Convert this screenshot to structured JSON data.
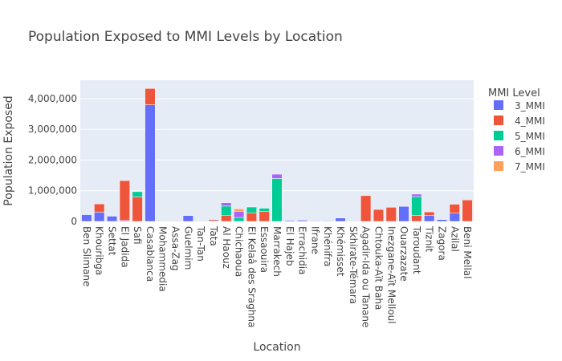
{
  "chart_data": {
    "type": "bar",
    "stacked": true,
    "title": "Population Exposed to MMI Levels by Location",
    "xlabel": "Location",
    "ylabel": "Population Exposed",
    "ylim": [
      0,
      4600000
    ],
    "yticks": [
      0,
      1000000,
      2000000,
      3000000,
      4000000
    ],
    "ytick_labels": [
      "0",
      "1,000,000",
      "2,000,000",
      "3,000,000",
      "4,000,000"
    ],
    "grid": true,
    "legend_title": "MMI Level",
    "legend_position": "right",
    "categories": [
      "Ben Slimane",
      "Khouribga",
      "Settat",
      "El Jadida",
      "Safi",
      "Casablanca",
      "Mohammedia",
      "Assa-Zag",
      "Guelmim",
      "Tan-Tan",
      "Tata",
      "Al Haouz",
      "Chichaoua",
      "El Kelaâ des Sraghna",
      "Essaouira",
      "Marrakech",
      "El Hajeb",
      "Errachidia",
      "Ifrane",
      "Khénifra",
      "Khémisset",
      "Skhirate-Témara",
      "Agadir-Ida ou Tanane",
      "Chtouka-Aït Baha",
      "Inezgane-Aït Melloul",
      "Ouarzazate",
      "Taroudant",
      "Tiznit",
      "Zagora",
      "Azilal",
      "Beni Mellal"
    ],
    "series": [
      {
        "name": "3_MMI",
        "color": "#636efa",
        "values": [
          220000,
          300000,
          170000,
          30000,
          0,
          3800000,
          0,
          0,
          190000,
          0,
          20000,
          0,
          0,
          0,
          0,
          0,
          30000,
          40000,
          20000,
          20000,
          110000,
          0,
          0,
          0,
          0,
          490000,
          0,
          200000,
          60000,
          270000,
          0
        ]
      },
      {
        "name": "4_MMI",
        "color": "#ef553b",
        "values": [
          0,
          270000,
          0,
          1300000,
          800000,
          530000,
          0,
          0,
          0,
          0,
          40000,
          190000,
          0,
          280000,
          330000,
          0,
          0,
          0,
          0,
          0,
          0,
          0,
          840000,
          390000,
          460000,
          0,
          200000,
          110000,
          0,
          290000,
          700000
        ]
      },
      {
        "name": "5_MMI",
        "color": "#00cc96",
        "values": [
          0,
          0,
          0,
          0,
          170000,
          0,
          0,
          0,
          0,
          0,
          0,
          310000,
          130000,
          190000,
          100000,
          1400000,
          0,
          0,
          0,
          0,
          0,
          0,
          0,
          0,
          0,
          0,
          610000,
          0,
          0,
          0,
          0
        ]
      },
      {
        "name": "6_MMI",
        "color": "#ab63fa",
        "values": [
          0,
          0,
          0,
          0,
          0,
          0,
          0,
          0,
          0,
          0,
          0,
          110000,
          200000,
          0,
          0,
          140000,
          0,
          0,
          0,
          0,
          0,
          0,
          0,
          0,
          0,
          0,
          80000,
          0,
          0,
          0,
          0
        ]
      },
      {
        "name": "7_MMI",
        "color": "#ffa15a",
        "values": [
          0,
          0,
          0,
          0,
          0,
          0,
          0,
          0,
          0,
          0,
          0,
          0,
          80000,
          0,
          0,
          0,
          0,
          0,
          0,
          0,
          0,
          0,
          0,
          0,
          0,
          0,
          0,
          0,
          0,
          0,
          0
        ]
      }
    ]
  }
}
